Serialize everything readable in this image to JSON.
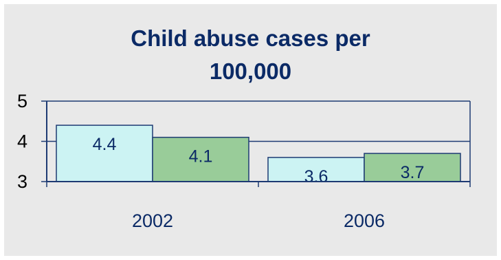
{
  "chart_data": {
    "type": "bar",
    "title_lines": [
      "Child abuse cases per",
      "100,000"
    ],
    "categories": [
      "2002",
      "2006"
    ],
    "series": [
      {
        "values": [
          4.4,
          3.6
        ]
      },
      {
        "values": [
          4.1,
          3.7
        ]
      }
    ],
    "ylim": [
      3,
      5
    ],
    "yticks": [
      "3",
      "4",
      "5"
    ],
    "grid": true,
    "legend": "none",
    "colors": {
      "series1": "#ccf3f3",
      "series2": "#99cc99",
      "axis": "#1d3a73",
      "text": "#0b2a66",
      "background": "#e9e9e9"
    }
  }
}
